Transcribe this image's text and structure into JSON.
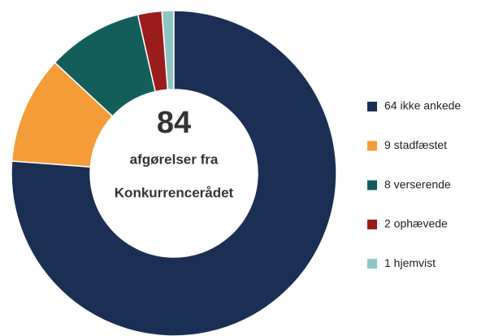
{
  "chart_data": {
    "type": "donut",
    "categories": [
      "64 ikke ankede",
      "9 stadfæstet",
      "8 verserende",
      "2 ophævede",
      "1 hjemvist"
    ],
    "values": [
      64,
      9,
      8,
      2,
      1
    ],
    "colors": [
      "#1b2f54",
      "#f39c38",
      "#135e5b",
      "#9b1c1c",
      "#8ec5c3"
    ],
    "total": 84,
    "center_text": [
      "afgørelser fra",
      "Konkurrencerådet"
    ],
    "legend": "right"
  }
}
